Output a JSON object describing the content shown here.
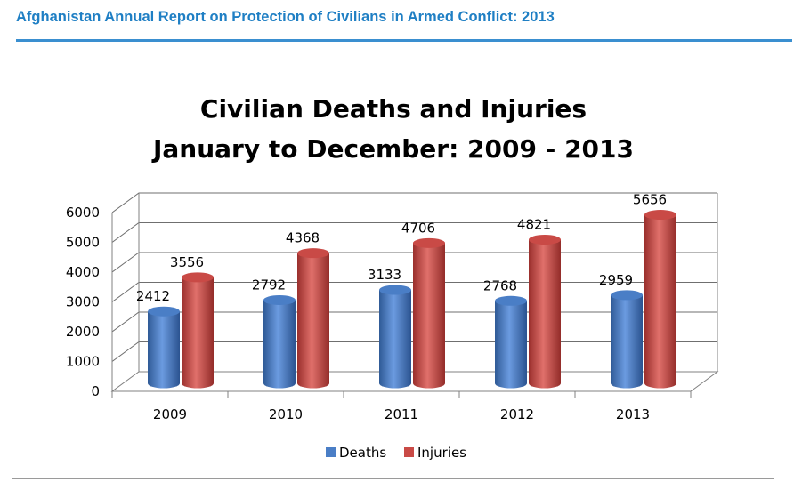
{
  "document": {
    "header": "Afghanistan Annual Report on Protection of Civilians in Armed Conflict: 2013"
  },
  "colors": {
    "header_text": "#1f7fc4",
    "header_rule": "#3a8fd0",
    "deaths": "#4a7ec6",
    "injuries": "#c94a46"
  },
  "chart_data": {
    "type": "bar",
    "style": "3d-cylinder",
    "title": [
      "Civilian Deaths and Injuries",
      "January to December: 2009 - 2013"
    ],
    "xlabel": "",
    "ylabel": "",
    "categories": [
      "2009",
      "2010",
      "2011",
      "2012",
      "2013"
    ],
    "series": [
      {
        "name": "Deaths",
        "color": "#4a7ec6",
        "values": [
          2412,
          2792,
          3133,
          2768,
          2959
        ]
      },
      {
        "name": "Injuries",
        "color": "#c94a46",
        "values": [
          3556,
          4368,
          4706,
          4821,
          5656
        ]
      }
    ],
    "ylim": [
      0,
      6000
    ],
    "yticks": [
      "0",
      "1000",
      "2000",
      "3000",
      "4000",
      "5000",
      "6000"
    ],
    "grid": true,
    "legend_position": "bottom"
  }
}
